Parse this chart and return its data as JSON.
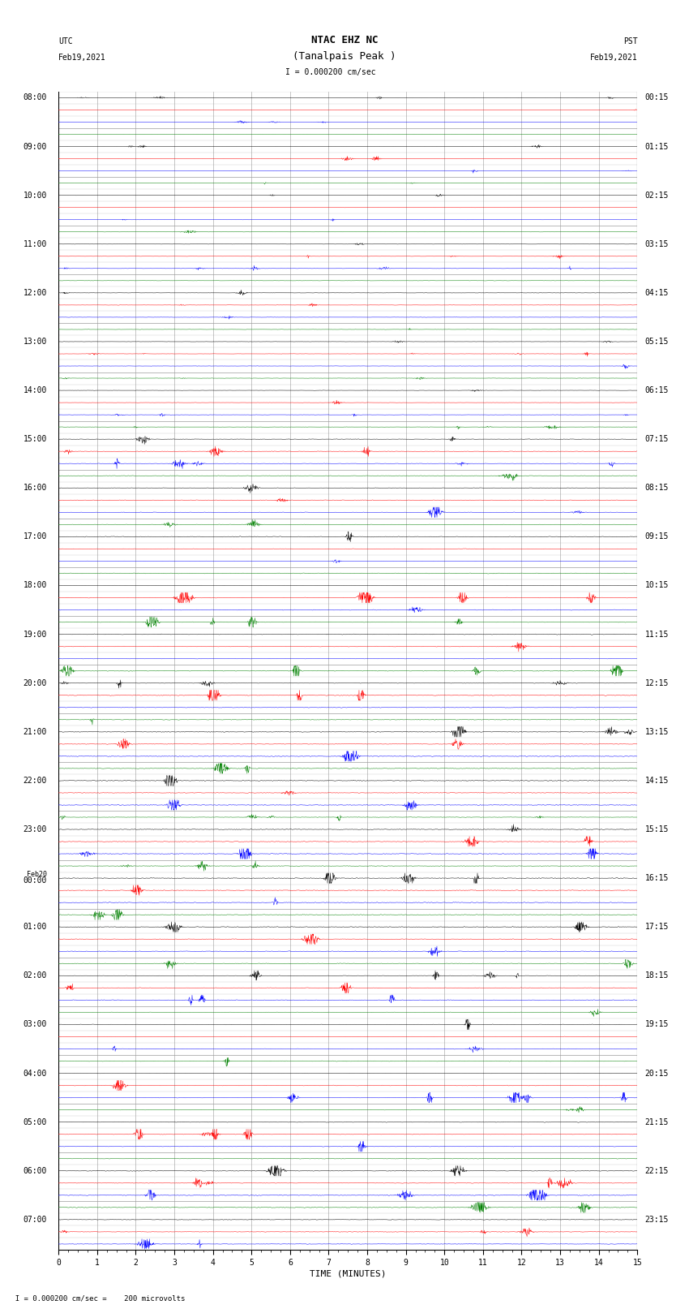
{
  "title_line1": "NTAC EHZ NC",
  "title_line2": "(Tanalpais Peak )",
  "scale_text": "I = 0.000200 cm/sec",
  "left_label_top": "UTC",
  "left_label_date": "Feb19,2021",
  "right_label_top": "PST",
  "right_label_date": "Feb19,2021",
  "xlabel": "TIME (MINUTES)",
  "bottom_note": "  I = 0.000200 cm/sec =    200 microvolts",
  "utc_times": [
    "08:00",
    "",
    "",
    "",
    "09:00",
    "",
    "",
    "",
    "10:00",
    "",
    "",
    "",
    "11:00",
    "",
    "",
    "",
    "12:00",
    "",
    "",
    "",
    "13:00",
    "",
    "",
    "",
    "14:00",
    "",
    "",
    "",
    "15:00",
    "",
    "",
    "",
    "16:00",
    "",
    "",
    "",
    "17:00",
    "",
    "",
    "",
    "18:00",
    "",
    "",
    "",
    "19:00",
    "",
    "",
    "",
    "20:00",
    "",
    "",
    "",
    "21:00",
    "",
    "",
    "",
    "22:00",
    "",
    "",
    "",
    "23:00",
    "",
    "",
    "",
    "Feb20\n00:00",
    "",
    "",
    "",
    "01:00",
    "",
    "",
    "",
    "02:00",
    "",
    "",
    "",
    "03:00",
    "",
    "",
    "",
    "04:00",
    "",
    "",
    "",
    "05:00",
    "",
    "",
    "",
    "06:00",
    "",
    "",
    "",
    "07:00",
    "",
    ""
  ],
  "pst_times": [
    "00:15",
    "",
    "",
    "",
    "01:15",
    "",
    "",
    "",
    "02:15",
    "",
    "",
    "",
    "03:15",
    "",
    "",
    "",
    "04:15",
    "",
    "",
    "",
    "05:15",
    "",
    "",
    "",
    "06:15",
    "",
    "",
    "",
    "07:15",
    "",
    "",
    "",
    "08:15",
    "",
    "",
    "",
    "09:15",
    "",
    "",
    "",
    "10:15",
    "",
    "",
    "",
    "11:15",
    "",
    "",
    "",
    "12:15",
    "",
    "",
    "",
    "13:15",
    "",
    "",
    "",
    "14:15",
    "",
    "",
    "",
    "15:15",
    "",
    "",
    "",
    "16:15",
    "",
    "",
    "",
    "17:15",
    "",
    "",
    "",
    "18:15",
    "",
    "",
    "",
    "19:15",
    "",
    "",
    "",
    "20:15",
    "",
    "",
    "",
    "21:15",
    "",
    "",
    "",
    "22:15",
    "",
    "",
    "",
    "23:15",
    "",
    ""
  ],
  "trace_colors": [
    "black",
    "red",
    "blue",
    "green"
  ],
  "num_traces": 95,
  "xmin": 0,
  "xmax": 15,
  "grid_color": "#999999",
  "bg_color": "white",
  "fig_width": 8.5,
  "fig_height": 16.13,
  "dpi": 100,
  "noise_scale_default": 0.008,
  "title_fontsize": 9,
  "label_fontsize": 7,
  "tick_fontsize": 7,
  "axis_label_fontsize": 8
}
